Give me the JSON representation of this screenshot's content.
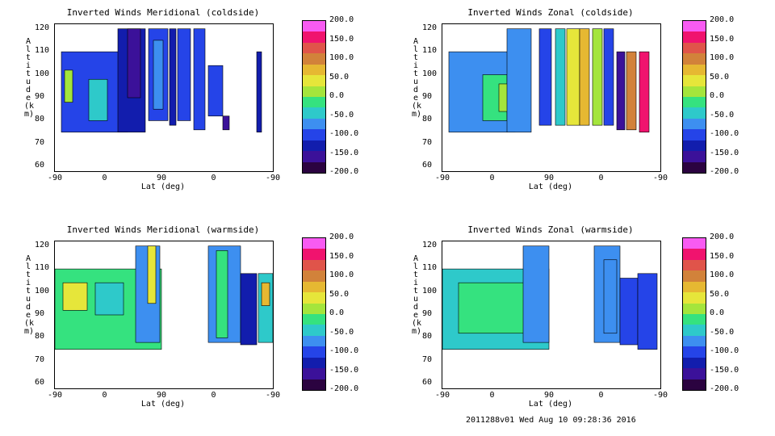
{
  "footer": "2011288v01 Wed Aug 10 09:28:36 2016",
  "chart_data": [
    {
      "type": "heatmap",
      "title": "Inverted Winds Meridional (coldside)",
      "xlabel": "Lat (deg)",
      "ylabel": "Altitude (km)",
      "x_ticks": [
        "-90",
        "0",
        "90",
        "0",
        "-90"
      ],
      "y_ticks": [
        "60",
        "70",
        "80",
        "90",
        "100",
        "110",
        "120"
      ],
      "ylim": [
        58,
        122
      ],
      "colorbar": {
        "min": -200,
        "max": 200,
        "labels": [
          "200.0",
          "150.0",
          "100.0",
          "50.0",
          "0.0",
          "-50.0",
          "-100.0",
          "-150.0",
          "-200.0"
        ]
      },
      "bands": [
        {
          "x": [
            -82,
            0
          ],
          "y": [
            75,
            110
          ],
          "value": -95
        },
        {
          "x": [
            -48,
            -25
          ],
          "y": [
            80,
            98
          ],
          "value": -30
        },
        {
          "x": [
            -78,
            -68
          ],
          "y": [
            88,
            102
          ],
          "value": 10
        },
        {
          "x": [
            -12,
            22
          ],
          "y": [
            75,
            120
          ],
          "value": -115
        },
        {
          "x": [
            0,
            16
          ],
          "y": [
            90,
            120
          ],
          "value": -150
        },
        {
          "x": [
            26,
            50
          ],
          "y": [
            80,
            120
          ],
          "value": -105
        },
        {
          "x": [
            32,
            44
          ],
          "y": [
            85,
            115
          ],
          "value": -70
        },
        {
          "x": [
            52,
            60
          ],
          "y": [
            78,
            120
          ],
          "value": -120
        },
        {
          "x": [
            62,
            78
          ],
          "y": [
            80,
            120
          ],
          "value": -95
        },
        {
          "x": [
            82,
            96
          ],
          "y": [
            76,
            120
          ],
          "value": -100
        },
        {
          "x": [
            100,
            118
          ],
          "y": [
            82,
            104
          ],
          "value": -110
        },
        {
          "x": [
            118,
            126
          ],
          "y": [
            76,
            82
          ],
          "value": -155
        },
        {
          "x": [
            160,
            166
          ],
          "y": [
            75,
            110
          ],
          "value": -120
        }
      ]
    },
    {
      "type": "heatmap",
      "title": "Inverted Winds Zonal (coldside)",
      "xlabel": "Lat (deg)",
      "ylabel": "Altitude (km)",
      "x_ticks": [
        "-90",
        "0",
        "90",
        "0",
        "-90"
      ],
      "y_ticks": [
        "60",
        "70",
        "80",
        "90",
        "100",
        "110",
        "120"
      ],
      "ylim": [
        58,
        122
      ],
      "colorbar": {
        "min": -200,
        "max": 200,
        "labels": [
          "200.0",
          "150.0",
          "100.0",
          "50.0",
          "0.0",
          "-50.0",
          "-100.0",
          "-150.0",
          "-200.0"
        ]
      },
      "bands": [
        {
          "x": [
            -82,
            0
          ],
          "y": [
            75,
            110
          ],
          "value": -60
        },
        {
          "x": [
            -40,
            -10
          ],
          "y": [
            80,
            100
          ],
          "value": -20
        },
        {
          "x": [
            -20,
            5
          ],
          "y": [
            84,
            96
          ],
          "value": 15
        },
        {
          "x": [
            -10,
            20
          ],
          "y": [
            75,
            120
          ],
          "value": -80
        },
        {
          "x": [
            30,
            45
          ],
          "y": [
            78,
            120
          ],
          "value": -100
        },
        {
          "x": [
            50,
            62
          ],
          "y": [
            78,
            120
          ],
          "value": -40
        },
        {
          "x": [
            64,
            80
          ],
          "y": [
            78,
            120
          ],
          "value": 40
        },
        {
          "x": [
            80,
            92
          ],
          "y": [
            78,
            120
          ],
          "value": 80
        },
        {
          "x": [
            96,
            108
          ],
          "y": [
            78,
            120
          ],
          "value": 20
        },
        {
          "x": [
            110,
            122
          ],
          "y": [
            78,
            120
          ],
          "value": -110
        },
        {
          "x": [
            126,
            136
          ],
          "y": [
            76,
            110
          ],
          "value": -160
        },
        {
          "x": [
            138,
            150
          ],
          "y": [
            76,
            110
          ],
          "value": 95
        },
        {
          "x": [
            154,
            166
          ],
          "y": [
            75,
            110
          ],
          "value": 170
        }
      ]
    },
    {
      "type": "heatmap",
      "title": "Inverted Winds Meridional (warmside)",
      "xlabel": "Lat (deg)",
      "ylabel": "Altitude (km)",
      "x_ticks": [
        "-90",
        "0",
        "90",
        "0",
        "-90"
      ],
      "y_ticks": [
        "60",
        "70",
        "80",
        "90",
        "100",
        "110",
        "120"
      ],
      "ylim": [
        58,
        122
      ],
      "colorbar": {
        "min": -200,
        "max": 200,
        "labels": [
          "200.0",
          "150.0",
          "100.0",
          "50.0",
          "0.0",
          "-50.0",
          "-100.0",
          "-150.0",
          "-200.0"
        ]
      },
      "bands": [
        {
          "x": [
            -90,
            42
          ],
          "y": [
            75,
            110
          ],
          "value": -10
        },
        {
          "x": [
            -80,
            -50
          ],
          "y": [
            92,
            104
          ],
          "value": 45
        },
        {
          "x": [
            -40,
            -5
          ],
          "y": [
            90,
            104
          ],
          "value": -40
        },
        {
          "x": [
            10,
            40
          ],
          "y": [
            78,
            120
          ],
          "value": -60
        },
        {
          "x": [
            25,
            35
          ],
          "y": [
            95,
            120
          ],
          "value": 50
        },
        {
          "x": [
            100,
            140
          ],
          "y": [
            78,
            120
          ],
          "value": -70
        },
        {
          "x": [
            110,
            124
          ],
          "y": [
            80,
            118
          ],
          "value": -10
        },
        {
          "x": [
            140,
            160
          ],
          "y": [
            77,
            108
          ],
          "value": -120
        },
        {
          "x": [
            162,
            180
          ],
          "y": [
            78,
            108
          ],
          "value": -50
        },
        {
          "x": [
            166,
            176
          ],
          "y": [
            94,
            104
          ],
          "value": 60
        }
      ]
    },
    {
      "type": "heatmap",
      "title": "Inverted Winds Zonal (warmside)",
      "xlabel": "Lat (deg)",
      "ylabel": "Altitude (km)",
      "x_ticks": [
        "-90",
        "0",
        "90",
        "0",
        "-90"
      ],
      "y_ticks": [
        "60",
        "70",
        "80",
        "90",
        "100",
        "110",
        "120"
      ],
      "ylim": [
        58,
        122
      ],
      "colorbar": {
        "min": -200,
        "max": 200,
        "labels": [
          "200.0",
          "150.0",
          "100.0",
          "50.0",
          "0.0",
          "-50.0",
          "-100.0",
          "-150.0",
          "-200.0"
        ]
      },
      "bands": [
        {
          "x": [
            -90,
            42
          ],
          "y": [
            75,
            110
          ],
          "value": -30
        },
        {
          "x": [
            -70,
            20
          ],
          "y": [
            82,
            104
          ],
          "value": -10
        },
        {
          "x": [
            10,
            42
          ],
          "y": [
            78,
            120
          ],
          "value": -85
        },
        {
          "x": [
            98,
            130
          ],
          "y": [
            78,
            120
          ],
          "value": -80
        },
        {
          "x": [
            110,
            126
          ],
          "y": [
            82,
            114
          ],
          "value": -60
        },
        {
          "x": [
            130,
            152
          ],
          "y": [
            77,
            106
          ],
          "value": -110
        },
        {
          "x": [
            152,
            176
          ],
          "y": [
            75,
            108
          ],
          "value": -100
        }
      ]
    }
  ]
}
